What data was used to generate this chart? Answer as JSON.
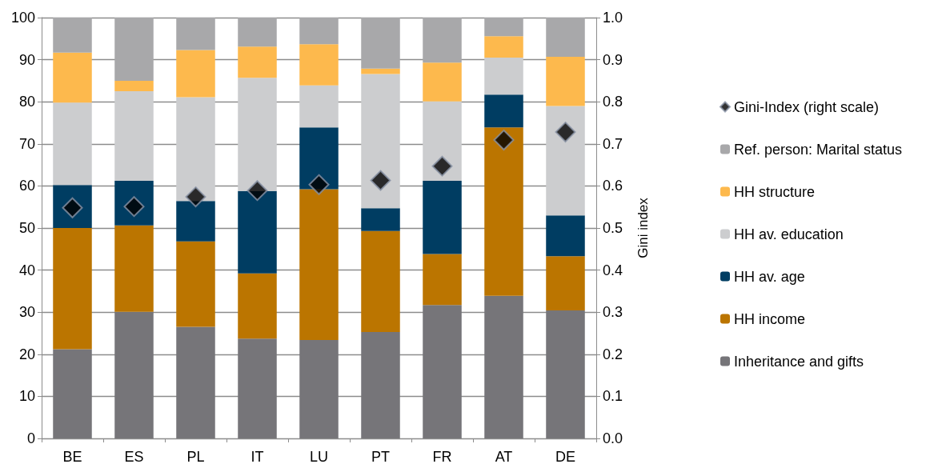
{
  "chart_data": {
    "type": "bar",
    "stacked": true,
    "categories": [
      "BE",
      "ES",
      "PL",
      "IT",
      "LU",
      "PT",
      "FR",
      "AT",
      "DE"
    ],
    "y2label": "Gini index",
    "ylim": [
      0,
      100
    ],
    "yticks": [
      0,
      10,
      20,
      30,
      40,
      50,
      60,
      70,
      80,
      90,
      100
    ],
    "y2lim": [
      0,
      1
    ],
    "y2ticks": [
      {
        "value": 0,
        "label": "0.0"
      },
      0.1,
      0.2,
      0.3,
      0.4,
      0.5,
      0.6,
      0.7,
      0.8,
      0.9,
      {
        "value": 1,
        "label": "1.0"
      }
    ],
    "grid": "y",
    "legend": "right",
    "series": [
      {
        "name": "Inheritance and gifts",
        "color": "#767579",
        "values": [
          21.2,
          30.1,
          26.5,
          23.7,
          23.4,
          25.3,
          31.7,
          33.9,
          30.4
        ]
      },
      {
        "name": "HH income",
        "color": "#bb7500",
        "values": [
          28.8,
          20.5,
          20.3,
          15.5,
          35.8,
          24.0,
          12.1,
          40.0,
          12.9
        ]
      },
      {
        "name": "HH av. age",
        "color": "#003d62",
        "values": [
          10.2,
          10.6,
          9.6,
          19.6,
          14.7,
          5.4,
          17.4,
          7.8,
          9.7
        ]
      },
      {
        "name": "HH av. education",
        "color": "#cccdcf",
        "values": [
          19.6,
          21.3,
          24.7,
          26.9,
          10.0,
          31.9,
          18.9,
          8.8,
          26.0
        ]
      },
      {
        "name": "HH structure",
        "color": "#fdb94d",
        "values": [
          11.9,
          2.5,
          11.2,
          7.4,
          9.8,
          1.3,
          9.2,
          5.1,
          11.7
        ]
      },
      {
        "name": "Ref. person: Marital status",
        "color": "#a8a8aa",
        "values": [
          8.3,
          15.0,
          7.7,
          6.9,
          6.3,
          12.1,
          10.7,
          4.4,
          9.3
        ]
      },
      {
        "name": "Gini-Index (right scale)",
        "type": "scatter",
        "axis": "y2",
        "marker": "diamond",
        "color": "#000000",
        "values": [
          0.548,
          0.551,
          0.574,
          0.589,
          0.603,
          0.613,
          0.647,
          0.709,
          0.728
        ]
      }
    ]
  }
}
